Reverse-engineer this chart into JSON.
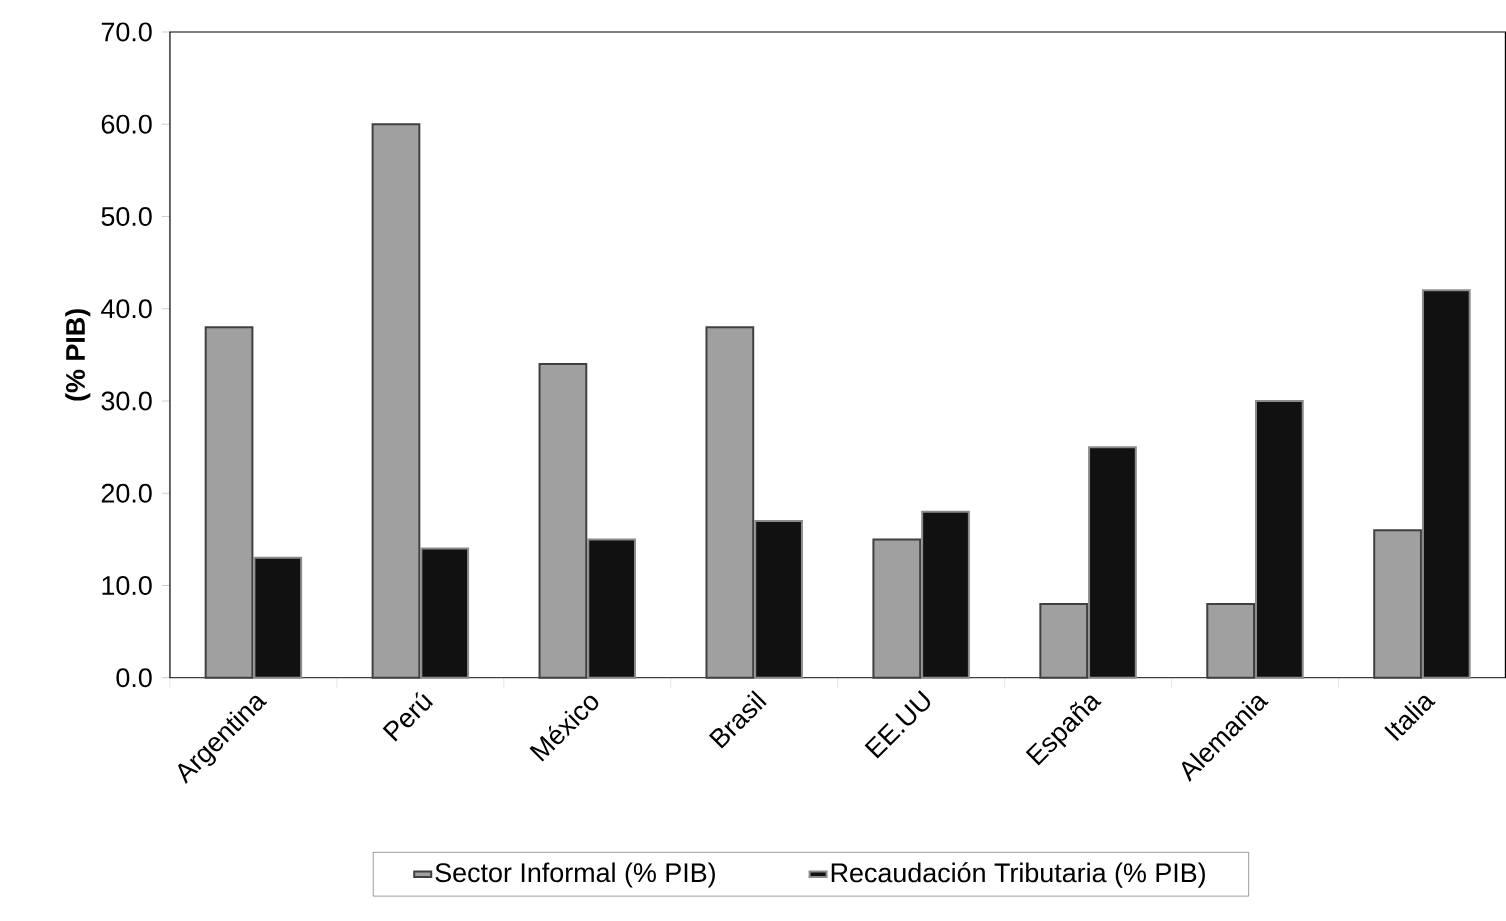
{
  "chart_data": {
    "type": "bar",
    "ylabel": "(% PIB)",
    "categories": [
      "Argentina",
      "Perú",
      "México",
      "Brasil",
      "EE.UU",
      "España",
      "Alemania",
      "Italia"
    ],
    "series": [
      {
        "name": "Sector  Informal (% PIB)",
        "color": "#a0a0a0",
        "values": [
          38,
          60,
          34,
          38,
          15,
          8,
          8,
          16
        ]
      },
      {
        "name": "Recaudación Tributaria (% PIB)",
        "color": "#111111",
        "values": [
          13,
          14,
          15,
          17,
          18,
          25,
          30,
          42
        ]
      }
    ],
    "ylim": [
      0,
      70
    ],
    "yticks": [
      {
        "value": 0,
        "label": "0.0"
      },
      {
        "value": 10,
        "label": "10.0"
      },
      {
        "value": 20,
        "label": "20.0"
      },
      {
        "value": 30,
        "label": "30.0"
      },
      {
        "value": 40,
        "label": "40.0"
      },
      {
        "value": 50,
        "label": "50.0"
      },
      {
        "value": 60,
        "label": "60.0"
      },
      {
        "value": 70,
        "label": "70.0"
      }
    ],
    "grid": false,
    "legend": "bottom"
  }
}
